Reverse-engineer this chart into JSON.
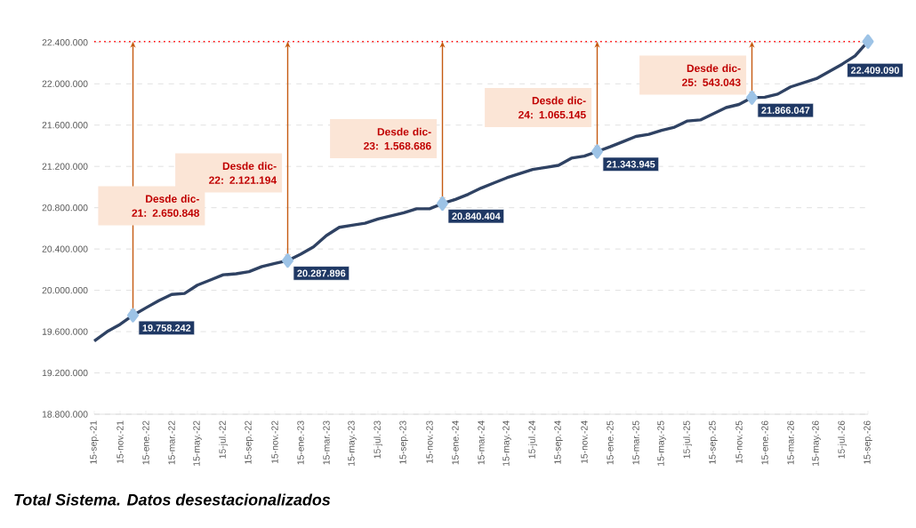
{
  "chart_data": {
    "type": "line",
    "categories": [
      "15-sep.-21",
      null,
      "15-nov.-21",
      null,
      "15-ene.-22",
      null,
      "15-mar.-22",
      null,
      "15-may.-22",
      null,
      "15-jul.-22",
      null,
      "15-sep.-22",
      null,
      "15-nov.-22",
      null,
      "15-ene.-23",
      null,
      "15-mar.-23",
      null,
      "15-may.-23",
      null,
      "15-jul.-23",
      null,
      "15-sep.-23",
      null,
      "15-nov.-23",
      null,
      "15-ene.-24",
      null,
      "15-mar.-24",
      null,
      "15-may.-24",
      null,
      "15-jul.-24",
      null,
      "15-sep.-24",
      null,
      "15-nov.-24",
      null,
      "15-ene.-25",
      null,
      "15-mar.-25",
      null,
      "15-may.-25",
      null,
      "15-jul.-25",
      null,
      "15-sep.-25",
      null,
      "15-nov.-25",
      null,
      "15-ene.-26",
      null,
      "15-mar.-26",
      null,
      "15-may.-26",
      null,
      "15-jul.-26",
      null,
      "15-sep.-26"
    ],
    "series": [
      {
        "color": "#2f4263",
        "values": [
          19510000,
          19600000,
          19670000,
          19758242,
          19830000,
          19900000,
          19960000,
          19970000,
          20050000,
          20100000,
          20150000,
          20160000,
          20180000,
          20230000,
          20260000,
          20287896,
          20350000,
          20420000,
          20530000,
          20610000,
          20630000,
          20650000,
          20690000,
          20720000,
          20750000,
          20790000,
          20790000,
          20840404,
          20880000,
          20930000,
          20990000,
          21040000,
          21090000,
          21130000,
          21170000,
          21190000,
          21210000,
          21280000,
          21300000,
          21343945,
          21390000,
          21440000,
          21490000,
          21510000,
          21550000,
          21580000,
          21640000,
          21650000,
          21710000,
          21770000,
          21800000,
          21866047,
          21870000,
          21900000,
          21970000,
          22010000,
          22050000,
          22120000,
          22190000,
          22270000,
          22409090
        ],
        "value_labels": [
          null,
          null,
          null,
          "19.758.242",
          null,
          null,
          null,
          null,
          null,
          null,
          null,
          null,
          null,
          null,
          null,
          "20.287.896",
          null,
          null,
          null,
          null,
          null,
          null,
          null,
          null,
          null,
          null,
          null,
          "20.840.404",
          null,
          null,
          null,
          null,
          null,
          null,
          null,
          null,
          null,
          null,
          null,
          "21.343.945",
          null,
          null,
          null,
          null,
          null,
          null,
          null,
          null,
          null,
          null,
          null,
          "21.866.047",
          null,
          null,
          null,
          null,
          null,
          null,
          null,
          null,
          "22.409.090"
        ]
      }
    ],
    "line_style": "solid",
    "ylim": [
      18800000,
      22450000
    ],
    "yticks": [
      {
        "value": 18800000,
        "label": "18.800.000"
      },
      {
        "value": 19200000,
        "label": "19.200.000"
      },
      {
        "value": 19600000,
        "label": "19.600.000"
      },
      {
        "value": 20000000,
        "label": "20.000.000"
      },
      {
        "value": 20400000,
        "label": "20.400.000"
      },
      {
        "value": 20800000,
        "label": "20.800.000"
      },
      {
        "value": 21200000,
        "label": "21.200.000"
      },
      {
        "value": 21600000,
        "label": "21.600.000"
      },
      {
        "value": 22000000,
        "label": "22.000.000"
      },
      {
        "value": 22400000,
        "label": "22.400.000"
      }
    ],
    "grid": "y",
    "ref_lines": [
      {
        "axis": "y",
        "value": 22409090,
        "color": "#ff0000",
        "line_style": "dotted"
      }
    ],
    "annotations": [
      "Desde dic-21: 2.650.848",
      "Desde dic-22: 2.121.194",
      "Desde dic-23: 1.568.686",
      "Desde dic-24: 1.065.145",
      "Desde dic-25: 543.043",
      "Total Sistema. Datos desestacionalizados"
    ]
  }
}
